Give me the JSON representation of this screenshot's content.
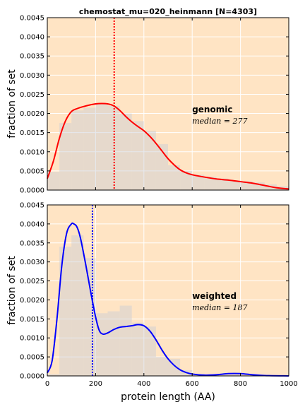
{
  "figure": {
    "title": "chemostat_mu=020_heinmann [N=4303]",
    "xlabel": "protein length (AA)",
    "colors": {
      "background": "#ffe4c4",
      "grid": "#ffffff",
      "hist_fill": "#c7cbd6",
      "hist_alpha": 0.45
    }
  },
  "chart_data": [
    {
      "type": "area",
      "panel": "top",
      "ylabel": "fraction of set",
      "xlim": [
        0,
        1000
      ],
      "ylim": [
        0,
        0.0045
      ],
      "xticks": [
        "0",
        "200",
        "400",
        "600",
        "800",
        "1000"
      ],
      "show_xtick_labels": false,
      "yticks": [
        "0.0000",
        "0.0005",
        "0.0010",
        "0.0015",
        "0.0020",
        "0.0025",
        "0.0030",
        "0.0035",
        "0.0040",
        "0.0045"
      ],
      "grid": true,
      "histogram": {
        "bin_edges": [
          0,
          50,
          100,
          150,
          200,
          250,
          300,
          350,
          400,
          450,
          500,
          550,
          600,
          650,
          700,
          750,
          800,
          850,
          900,
          950,
          1000
        ],
        "values": [
          0.00048,
          0.00175,
          0.00208,
          0.00215,
          0.00225,
          0.0022,
          0.002,
          0.0018,
          0.00155,
          0.0012,
          0.00065,
          0.0005,
          0.0004,
          0.00035,
          0.0003,
          0.00025,
          0.00023,
          0.0002,
          0.00015,
          0.0001
        ]
      },
      "series": [
        {
          "color": "#ff0000",
          "x": [
            0,
            25,
            50,
            75,
            100,
            125,
            150,
            175,
            200,
            225,
            250,
            275,
            300,
            325,
            350,
            375,
            400,
            425,
            450,
            475,
            500,
            525,
            550,
            575,
            600,
            650,
            700,
            750,
            800,
            850,
            900,
            950,
            1000
          ],
          "y": [
            0.0003,
            0.00075,
            0.00135,
            0.0018,
            0.00205,
            0.00213,
            0.00218,
            0.00222,
            0.00225,
            0.00226,
            0.00225,
            0.0022,
            0.00208,
            0.00192,
            0.00178,
            0.00166,
            0.00155,
            0.0014,
            0.00122,
            0.00102,
            0.00082,
            0.00066,
            0.00053,
            0.00045,
            0.0004,
            0.00034,
            0.00029,
            0.00026,
            0.00022,
            0.00018,
            0.00012,
            6e-05,
            3e-05
          ]
        }
      ],
      "median": {
        "value": 277,
        "color": "#ff0000"
      },
      "annotation": {
        "label": "genomic",
        "median_label": "median = 277"
      }
    },
    {
      "type": "area",
      "panel": "bottom",
      "ylabel": "fraction of set",
      "xlim": [
        0,
        1000
      ],
      "ylim": [
        0,
        0.0045
      ],
      "xticks": [
        "0",
        "200",
        "400",
        "600",
        "800",
        "1000"
      ],
      "show_xtick_labels": true,
      "yticks": [
        "0.0000",
        "0.0005",
        "0.0010",
        "0.0015",
        "0.0020",
        "0.0025",
        "0.0030",
        "0.0035",
        "0.0040",
        "0.0045"
      ],
      "grid": true,
      "histogram": {
        "bin_edges": [
          0,
          50,
          100,
          150,
          200,
          250,
          300,
          350,
          400,
          450,
          500,
          550,
          600,
          650,
          700,
          750,
          800,
          850,
          900,
          950,
          1000
        ],
        "values": [
          5e-05,
          0.0034,
          0.0037,
          0.0031,
          0.00165,
          0.0017,
          0.00185,
          0.0014,
          0.0013,
          0.0005,
          0.00045,
          0.00015,
          5e-05,
          3e-05,
          2e-05,
          2e-05,
          1e-05,
          1e-05,
          1e-05,
          1e-05
        ]
      },
      "series": [
        {
          "color": "#0000ff",
          "x": [
            0,
            20,
            40,
            60,
            80,
            100,
            110,
            120,
            130,
            140,
            160,
            180,
            200,
            215,
            230,
            250,
            275,
            300,
            325,
            350,
            375,
            400,
            425,
            450,
            475,
            500,
            525,
            550,
            575,
            600,
            650,
            700,
            750,
            800,
            850,
            900,
            1000
          ],
          "y": [
            8e-05,
            0.0004,
            0.0015,
            0.0029,
            0.00375,
            0.004,
            0.004,
            0.00395,
            0.0038,
            0.00355,
            0.0029,
            0.0022,
            0.00155,
            0.0012,
            0.0011,
            0.00113,
            0.00122,
            0.00128,
            0.0013,
            0.00132,
            0.00135,
            0.00132,
            0.00118,
            0.00095,
            0.00068,
            0.00045,
            0.00028,
            0.00016,
            9e-05,
            5e-05,
            2e-05,
            3e-05,
            6e-05,
            6e-05,
            3e-05,
            1e-05,
            0.0
          ]
        }
      ],
      "median": {
        "value": 187,
        "color": "#0000ff"
      },
      "annotation": {
        "label": "weighted",
        "median_label": "median = 187"
      }
    }
  ]
}
